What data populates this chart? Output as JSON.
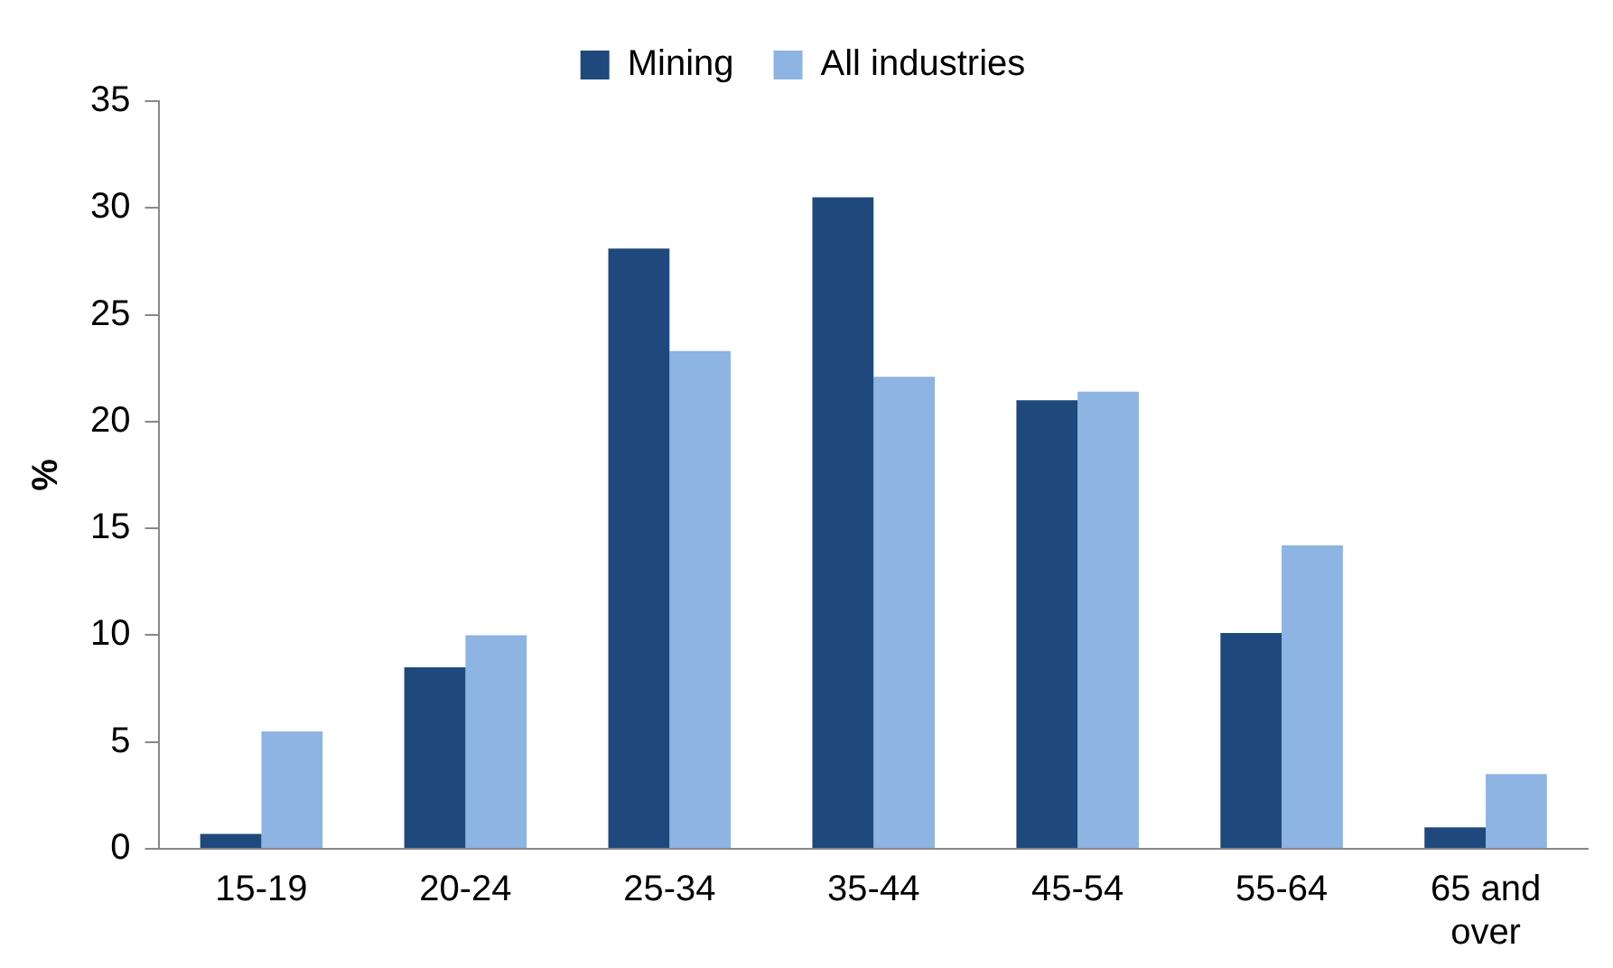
{
  "chart_data": {
    "type": "bar",
    "ylabel": "%",
    "categories": [
      "15-19",
      "20-24",
      "25-34",
      "35-44",
      "45-54",
      "55-64",
      "65 and over"
    ],
    "series": [
      {
        "name": "Mining",
        "color": "#1f497d",
        "values": [
          0.7,
          8.5,
          28.1,
          30.5,
          21.0,
          10.1,
          1.0
        ]
      },
      {
        "name": "All industries",
        "color": "#8db4e2",
        "values": [
          5.5,
          10.0,
          23.3,
          22.1,
          21.4,
          14.2,
          3.5
        ]
      }
    ],
    "ylim": [
      0,
      35
    ],
    "yticks": [
      0,
      5,
      10,
      15,
      20,
      25,
      30,
      35
    ],
    "grid": false,
    "legend": "top"
  }
}
